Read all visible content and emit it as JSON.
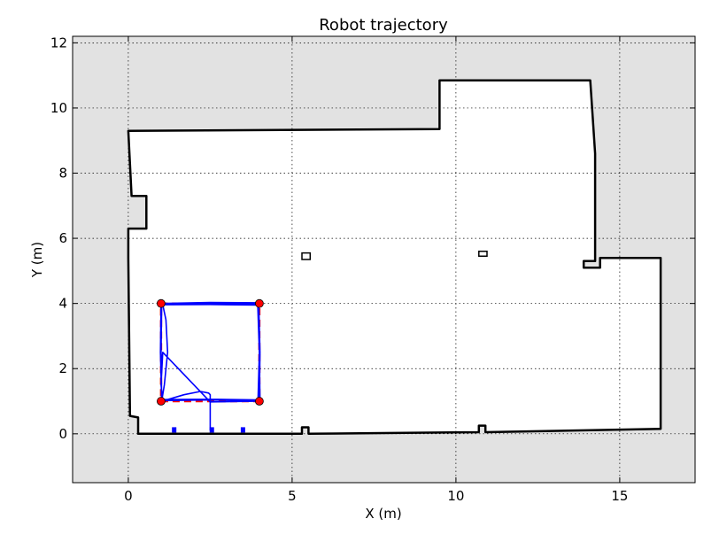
{
  "chart_data": {
    "type": "line",
    "title": "Robot trajectory",
    "xlabel": "X (m)",
    "ylabel": "Y (m)",
    "xlim": [
      -1.7,
      17.3
    ],
    "ylim": [
      -1.5,
      12.2
    ],
    "xticks": [
      0,
      5,
      10,
      15
    ],
    "yticks": [
      0,
      2,
      4,
      6,
      8,
      10,
      12
    ],
    "grid": true,
    "background_color": "#e2e2e2",
    "map_free_color": "#ffffff",
    "map_wall_color": "#000000",
    "waypoint_color": "#ff0000",
    "trajectory_color": "#0000ff",
    "map_boundary": [
      [
        0.0,
        9.3
      ],
      [
        9.5,
        9.35
      ],
      [
        9.5,
        10.85
      ],
      [
        14.1,
        10.85
      ],
      [
        14.25,
        8.6
      ],
      [
        14.25,
        5.3
      ],
      [
        13.9,
        5.3
      ],
      [
        13.9,
        5.1
      ],
      [
        14.4,
        5.1
      ],
      [
        14.4,
        5.4
      ],
      [
        16.25,
        5.4
      ],
      [
        16.25,
        0.15
      ],
      [
        10.9,
        0.05
      ],
      [
        10.9,
        0.25
      ],
      [
        10.7,
        0.25
      ],
      [
        10.7,
        0.05
      ],
      [
        5.5,
        0.0
      ],
      [
        5.5,
        0.2
      ],
      [
        5.3,
        0.2
      ],
      [
        5.3,
        0.0
      ],
      [
        0.3,
        0.0
      ],
      [
        0.3,
        0.5
      ],
      [
        0.05,
        0.55
      ],
      [
        0.0,
        5.4
      ],
      [
        0.0,
        6.3
      ],
      [
        0.55,
        6.3
      ],
      [
        0.55,
        7.3
      ],
      [
        0.1,
        7.3
      ],
      [
        0.0,
        9.3
      ]
    ],
    "obstacles": [
      [
        [
          5.3,
          5.35
        ],
        [
          5.55,
          5.35
        ],
        [
          5.55,
          5.55
        ],
        [
          5.3,
          5.55
        ],
        [
          5.3,
          5.35
        ]
      ],
      [
        [
          10.7,
          5.45
        ],
        [
          10.95,
          5.45
        ],
        [
          10.95,
          5.6
        ],
        [
          10.7,
          5.6
        ],
        [
          10.7,
          5.45
        ]
      ]
    ],
    "series": [
      {
        "x": [
          1.0,
          4.0,
          4.0,
          1.0,
          1.0
        ],
        "y": [
          1.0,
          1.0,
          4.0,
          4.0,
          1.0
        ]
      },
      {
        "x": [
          2.5,
          2.5,
          2.45,
          2.2,
          1.7,
          1.2,
          1.05,
          1.0,
          1.05,
          2.5,
          4.0,
          4.02,
          3.98,
          2.5,
          1.0,
          0.98,
          1.02,
          2.5,
          4.02,
          4.0,
          3.97,
          2.5,
          1.02,
          1.0,
          1.02,
          1.1,
          1.2,
          1.15,
          1.05,
          2.5,
          3.95,
          4.0,
          3.96,
          2.5,
          1.0
        ],
        "y": [
          0.1,
          1.2,
          1.25,
          1.3,
          1.2,
          1.05,
          1.0,
          1.5,
          2.5,
          0.98,
          1.0,
          2.5,
          4.02,
          4.03,
          4.0,
          2.5,
          1.02,
          1.04,
          1.02,
          2.5,
          3.98,
          3.99,
          4.0,
          2.5,
          1.0,
          1.5,
          2.5,
          3.5,
          3.96,
          3.97,
          3.95,
          2.5,
          1.04,
          1.06,
          1.05
        ]
      }
    ],
    "markers": [
      {
        "x": 1.4,
        "y": 0.12
      },
      {
        "x": 2.55,
        "y": 0.12
      },
      {
        "x": 3.5,
        "y": 0.12
      }
    ]
  }
}
